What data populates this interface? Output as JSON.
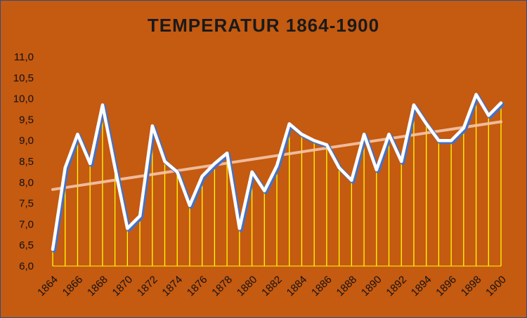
{
  "chart_data": {
    "type": "line",
    "title": "TEMPERATUR 1864-1900",
    "xlabel": "",
    "ylabel": "",
    "ylim": [
      6.0,
      11.0
    ],
    "yticks": [
      "6,0",
      "6,5",
      "7,0",
      "7,5",
      "8,0",
      "8,5",
      "9,0",
      "9,5",
      "10,0",
      "10,5",
      "11,0"
    ],
    "xtick_labels": [
      "1864",
      "1866",
      "1868",
      "1870",
      "1872",
      "1874",
      "1876",
      "1878",
      "1880",
      "1882",
      "1884",
      "1886",
      "1888",
      "1890",
      "1892",
      "1894",
      "1896",
      "1898",
      "1900"
    ],
    "x": [
      1864,
      1865,
      1866,
      1867,
      1868,
      1869,
      1870,
      1871,
      1872,
      1873,
      1874,
      1875,
      1876,
      1877,
      1878,
      1879,
      1880,
      1881,
      1882,
      1883,
      1884,
      1885,
      1886,
      1887,
      1888,
      1889,
      1890,
      1891,
      1892,
      1893,
      1894,
      1895,
      1896,
      1897,
      1898,
      1899,
      1900
    ],
    "series": [
      {
        "values": [
          6.4,
          8.35,
          9.15,
          8.45,
          9.85,
          8.35,
          6.9,
          7.2,
          9.35,
          8.5,
          8.25,
          7.45,
          8.15,
          8.45,
          8.7,
          6.9,
          8.25,
          7.8,
          8.4,
          9.4,
          9.15,
          9.0,
          8.9,
          8.35,
          8.05,
          9.15,
          8.3,
          9.15,
          8.5,
          9.85,
          9.4,
          9.0,
          9.0,
          9.3,
          10.1,
          9.6,
          9.9
        ]
      }
    ],
    "trendline": {
      "start": 7.83,
      "end": 9.45
    },
    "grid": false,
    "legend": "none",
    "colors": {
      "background": "#c55a11",
      "line": "#ffffff",
      "line_shadow": "#4472c4",
      "drop_lines": "#ffff00",
      "trendline": "#f4c6a8",
      "text": "#111111"
    }
  }
}
